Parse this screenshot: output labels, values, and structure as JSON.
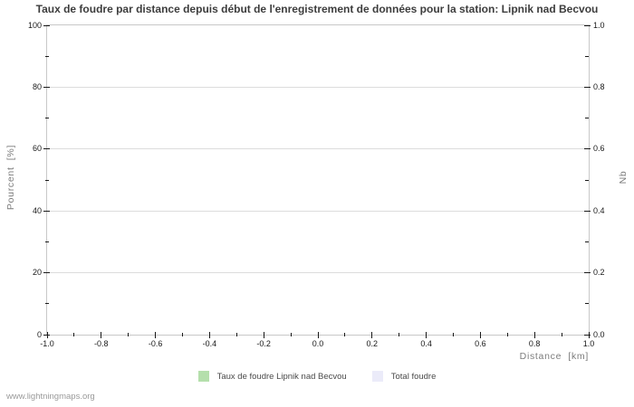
{
  "watermark": "www.lightningmaps.org",
  "colors": {
    "background": "#ffffff",
    "title_text": "#3d3d3d",
    "frame": "#c8c8c8",
    "grid": "#dcdcdc",
    "tick": "#1a1a1a",
    "tick_label": "#1a1a1a",
    "axis_label": "#7c7c7c",
    "legend_text": "#4a4a4a",
    "watermark_text": "#9a9a9a",
    "series_rate_green": "#b5dfac",
    "series_total_lavender": "#ebebf9"
  },
  "chart_data": {
    "type": "bar",
    "title": "Taux de foudre par distance depuis début de l'enregistrement de données pour la station: Lipnik nad Becvou",
    "x_axis": {
      "label": "Distance  [km]",
      "min": -1.0,
      "max": 1.0,
      "major_ticks": [
        -1.0,
        -0.8,
        -0.6,
        -0.4,
        -0.2,
        0.0,
        0.2,
        0.4,
        0.6,
        0.8,
        1.0
      ],
      "major_tick_labels": [
        "-1.0",
        "-0.8",
        "-0.6",
        "-0.4",
        "-0.2",
        "0.0",
        "0.2",
        "0.4",
        "0.6",
        "0.8",
        "1.0"
      ],
      "minor_ticks": [
        -0.9,
        -0.7,
        -0.5,
        -0.3,
        -0.1,
        0.1,
        0.3,
        0.5,
        0.7,
        0.9
      ]
    },
    "y_axis_left": {
      "label": "Pourcent  [%]",
      "min": 0,
      "max": 100,
      "major_ticks": [
        0,
        20,
        40,
        60,
        80,
        100
      ],
      "major_tick_labels": [
        "0",
        "20",
        "40",
        "60",
        "80",
        "100"
      ],
      "minor_ticks": [
        10,
        30,
        50,
        70,
        90
      ]
    },
    "y_axis_right": {
      "label": "Nb",
      "min": 0.0,
      "max": 1.0,
      "major_ticks": [
        0.0,
        0.2,
        0.4,
        0.6,
        0.8,
        1.0
      ],
      "major_tick_labels": [
        "0.0",
        "0.2",
        "0.4",
        "0.6",
        "0.8",
        "1.0"
      ],
      "minor_ticks": [
        0.1,
        0.3,
        0.5,
        0.7,
        0.9
      ]
    },
    "grid": {
      "horizontal_major": true,
      "vertical": false
    },
    "legend_position": "bottom-center",
    "series": [
      {
        "name": "Taux de foudre Lipnik nad Becvou",
        "color": "#b5dfac",
        "type": "bar",
        "values": []
      },
      {
        "name": "Total foudre",
        "color": "#ebebf9",
        "type": "bar",
        "values": []
      }
    ]
  }
}
